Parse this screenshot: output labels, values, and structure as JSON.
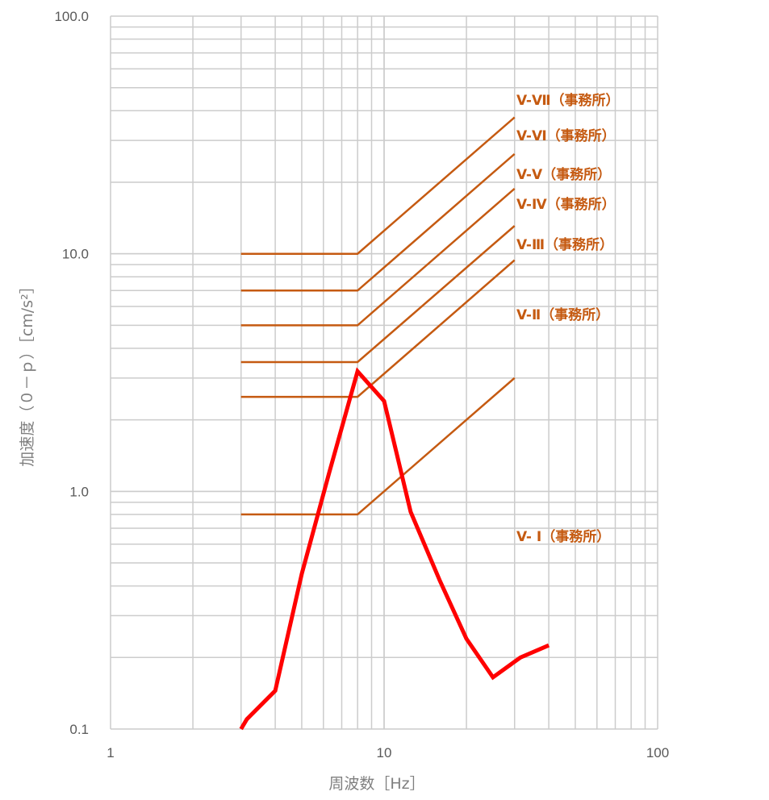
{
  "chart_data": {
    "type": "line",
    "xscale": "log",
    "yscale": "log",
    "xlim": [
      1,
      100
    ],
    "ylim": [
      0.1,
      100
    ],
    "grid": true,
    "xlabel": "周波数［Hz］",
    "ylabel": "加速度（０－ｐ）［cm/s²］",
    "x_tick_labels": [
      "1",
      "10",
      "100"
    ],
    "y_tick_labels": [
      "0.1",
      "1.0",
      "10.0",
      "100.0"
    ],
    "series": [
      {
        "name": "V-Ⅰ（事務所）",
        "color": "#c55a11",
        "x": [
          3,
          8,
          30
        ],
        "y": [
          0.8,
          0.8,
          3.0
        ]
      },
      {
        "name": "V-Ⅱ（事務所）",
        "color": "#c55a11",
        "x": [
          3,
          8,
          30
        ],
        "y": [
          2.5,
          2.5,
          9.4
        ]
      },
      {
        "name": "V-Ⅲ（事務所）",
        "color": "#c55a11",
        "x": [
          3,
          8,
          30
        ],
        "y": [
          3.5,
          3.5,
          13.1
        ]
      },
      {
        "name": "V-Ⅳ（事務所）",
        "color": "#c55a11",
        "x": [
          3,
          8,
          30
        ],
        "y": [
          5.0,
          5.0,
          18.8
        ]
      },
      {
        "name": "V-Ⅴ（事務所）",
        "color": "#c55a11",
        "x": [
          3,
          8,
          30
        ],
        "y": [
          7.0,
          7.0,
          26.3
        ]
      },
      {
        "name": "V-Ⅵ（事務所）",
        "color": "#c55a11",
        "x": [
          3,
          8,
          30
        ],
        "y": [
          10.0,
          10.0,
          37.5
        ]
      },
      {
        "color": "#ff0000",
        "x": [
          3,
          3.15,
          4,
          5,
          6.3,
          8,
          10,
          12.5,
          16,
          20,
          25,
          31.5,
          40
        ],
        "y": [
          0.1,
          0.11,
          0.145,
          0.45,
          1.2,
          3.2,
          2.4,
          0.82,
          0.42,
          0.24,
          0.165,
          0.2,
          0.225
        ]
      }
    ],
    "labels": [
      "V-Ⅶ（事務所）",
      "V-Ⅵ（事務所）",
      "V-Ⅴ（事務所）",
      "V-Ⅳ（事務所）",
      "V-Ⅲ（事務所）",
      "V-Ⅱ（事務所）",
      "V- Ⅰ（事務所）"
    ]
  }
}
